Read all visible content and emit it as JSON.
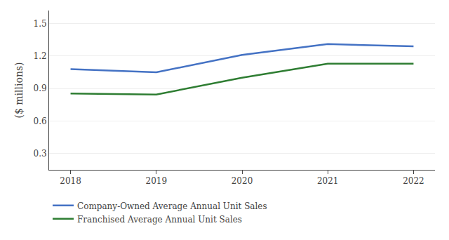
{
  "chart_data": {
    "type": "line",
    "x": [
      2018,
      2019,
      2020,
      2021,
      2022
    ],
    "series": [
      {
        "name": "Company-Owned Average Annual Unit Sales",
        "color": "#4472C4",
        "values": [
          1.08,
          1.05,
          1.21,
          1.31,
          1.29
        ]
      },
      {
        "name": "Franchised Average Annual Unit Sales",
        "color": "#2E7D32",
        "values": [
          0.855,
          0.845,
          1.0,
          1.13,
          1.13
        ]
      }
    ],
    "y_label": "($ millions)",
    "xlim": [
      2017.75,
      2022.25
    ],
    "xticks": [
      2018,
      2019,
      2020,
      2021,
      2022
    ],
    "ylim": [
      0.15,
      1.62
    ],
    "yticks": [
      0.3,
      0.6,
      0.9,
      1.2,
      1.5
    ],
    "grid": "y",
    "legend": "bottom"
  }
}
